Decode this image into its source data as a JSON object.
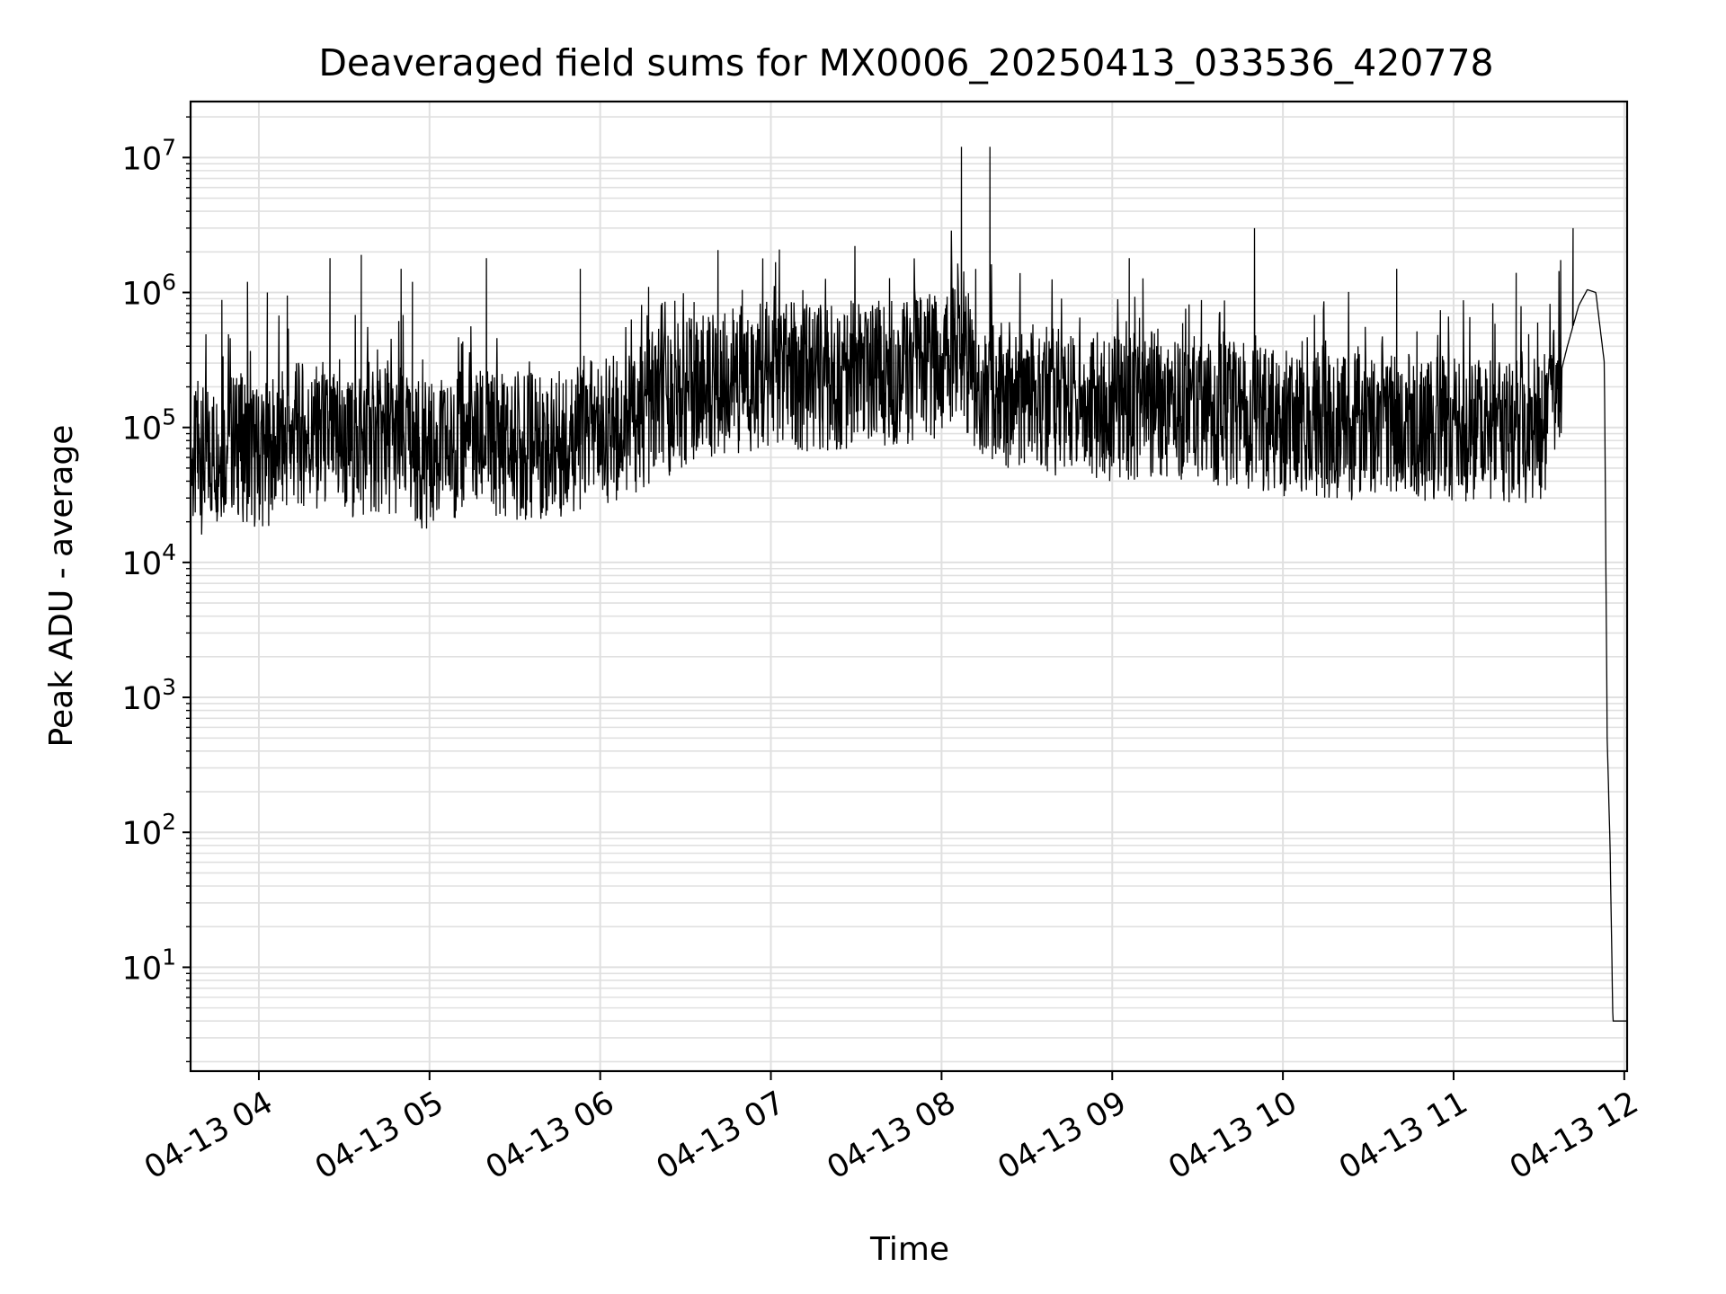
{
  "chart_data": {
    "type": "line",
    "title": "Deaveraged field sums for MX0006_20250413_033536_420778",
    "xlabel": "Time",
    "ylabel": "Peak ADU - average",
    "y_scale": "log",
    "grid": true,
    "line_color": "#000000",
    "grid_color": "#e0e0e0",
    "xlim": [
      "2025-04-13 03:36",
      "2025-04-13 12:01"
    ],
    "ylim": [
      1.7,
      26000000
    ],
    "x_ticks": [
      "04-13 04",
      "04-13 05",
      "04-13 06",
      "04-13 07",
      "04-13 08",
      "04-13 09",
      "04-13 10",
      "04-13 11",
      "04-13 12"
    ],
    "y_ticks": [
      {
        "base": "10",
        "exp": "1"
      },
      {
        "base": "10",
        "exp": "2"
      },
      {
        "base": "10",
        "exp": "3"
      },
      {
        "base": "10",
        "exp": "4"
      },
      {
        "base": "10",
        "exp": "5"
      },
      {
        "base": "10",
        "exp": "6"
      },
      {
        "base": "10",
        "exp": "7"
      }
    ],
    "series": [
      {
        "x": [
          "2025-04-13 03:36",
          "2025-04-13 03:50",
          "2025-04-13 04:00",
          "2025-04-13 04:15",
          "2025-04-13 04:30",
          "2025-04-13 04:45",
          "2025-04-13 05:00",
          "2025-04-13 05:15",
          "2025-04-13 05:30",
          "2025-04-13 05:45",
          "2025-04-13 06:00",
          "2025-04-13 06:15",
          "2025-04-13 06:30",
          "2025-04-13 06:45",
          "2025-04-13 07:00",
          "2025-04-13 07:15",
          "2025-04-13 07:30",
          "2025-04-13 07:45",
          "2025-04-13 08:00",
          "2025-04-13 08:06",
          "2025-04-13 08:12",
          "2025-04-13 08:20",
          "2025-04-13 08:30",
          "2025-04-13 08:45",
          "2025-04-13 09:00",
          "2025-04-13 09:15",
          "2025-04-13 09:30",
          "2025-04-13 09:45",
          "2025-04-13 10:00",
          "2025-04-13 10:15",
          "2025-04-13 10:30",
          "2025-04-13 10:45",
          "2025-04-13 11:00",
          "2025-04-13 11:15",
          "2025-04-13 11:30",
          "2025-04-13 11:35",
          "2025-04-13 11:40",
          "2025-04-13 11:44",
          "2025-04-13 11:47",
          "2025-04-13 11:50",
          "2025-04-13 11:53",
          "2025-04-13 11:54",
          "2025-04-13 11:55",
          "2025-04-13 11:56",
          "2025-04-13 12:01"
        ],
        "y": [
          50000,
          80000,
          60000,
          90000,
          70000,
          80000,
          60000,
          80000,
          70000,
          75000,
          90000,
          120000,
          180000,
          220000,
          250000,
          230000,
          250000,
          260000,
          270000,
          500000,
          200000,
          180000,
          170000,
          150000,
          140000,
          150000,
          130000,
          120000,
          110000,
          105000,
          100000,
          100000,
          95000,
          90000,
          90000,
          150000,
          400000,
          800000,
          1050000,
          1000000,
          300000,
          500,
          80,
          4,
          4
        ],
        "spikes": [
          {
            "x": "2025-04-13 08:07",
            "y": 12000000
          },
          {
            "x": "2025-04-13 08:17",
            "y": 12000000
          },
          {
            "x": "2025-04-13 09:50",
            "y": 3000000
          },
          {
            "x": "2025-04-13 11:42",
            "y": 3000000
          },
          {
            "x": "2025-04-13 04:25",
            "y": 1800000
          },
          {
            "x": "2025-04-13 04:36",
            "y": 1900000
          },
          {
            "x": "2025-04-13 05:20",
            "y": 1800000
          },
          {
            "x": "2025-04-13 09:06",
            "y": 1800000
          },
          {
            "x": "2025-04-13 04:50",
            "y": 1500000
          },
          {
            "x": "2025-04-13 05:53",
            "y": 1500000
          },
          {
            "x": "2025-04-13 10:40",
            "y": 1500000
          },
          {
            "x": "2025-04-13 11:22",
            "y": 1400000
          },
          {
            "x": "2025-04-13 03:56",
            "y": 1200000
          },
          {
            "x": "2025-04-13 04:54",
            "y": 1200000
          },
          {
            "x": "2025-04-13 06:17",
            "y": 1100000
          },
          {
            "x": "2025-04-13 06:33",
            "y": 850000
          },
          {
            "x": "2025-04-13 04:10",
            "y": 950000
          },
          {
            "x": "2025-04-13 04:03",
            "y": 1000000
          },
          {
            "x": "2025-04-13 03:47",
            "y": 880000
          }
        ]
      }
    ]
  }
}
